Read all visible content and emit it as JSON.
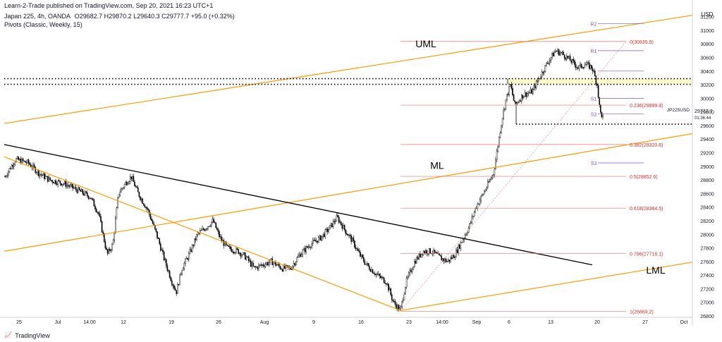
{
  "header": {
    "publisher": "Learn-2-Trade published on TradingView.com, Sep 20, 2021 16:23 UTC+1",
    "symbol": "Japan 225, 4h, OANDA",
    "ohlc": "O29682.7  H29870.2  L29640.3  C29777.7  +95.0 (+0.32%)",
    "indicator": "Pivots (Classic, Weekly, 15)"
  },
  "footer": {
    "brand": "TradingView",
    "icon": "tradingview-logo-icon"
  },
  "colors": {
    "orange": "#ff9800",
    "black": "#000000",
    "fib": "#e57373",
    "pivot": "#7e57c2",
    "zone": "#fff9c4",
    "up": "#ffffff",
    "down": "#000000"
  },
  "chart_data": {
    "type": "candlestick",
    "timeframe": "4h",
    "symbol": "JP225USD",
    "currency": "USD",
    "ylim": [
      26800,
      31300
    ],
    "y_ticks": [
      26800,
      27000,
      27200,
      27400,
      27600,
      27800,
      28000,
      28200,
      28400,
      28600,
      28800,
      29000,
      29200,
      29400,
      29600,
      29800,
      30000,
      30200,
      30400,
      30600,
      30800,
      31000,
      31200
    ],
    "x_ticks": [
      {
        "label": "25",
        "x": 27
      },
      {
        "label": "Jul",
        "x": 82
      },
      {
        "label": "14:00",
        "x": 127
      },
      {
        "label": "12",
        "x": 175
      },
      {
        "label": "19",
        "x": 243
      },
      {
        "label": "26",
        "x": 310
      },
      {
        "label": "Aug",
        "x": 375
      },
      {
        "label": "9",
        "x": 445
      },
      {
        "label": "16",
        "x": 512
      },
      {
        "label": "23",
        "x": 580
      },
      {
        "label": "14:00",
        "x": 627
      },
      {
        "label": "Sep",
        "x": 676
      },
      {
        "label": "6",
        "x": 722
      },
      {
        "label": "13",
        "x": 781
      },
      {
        "label": "20",
        "x": 847
      },
      {
        "label": "27",
        "x": 915
      },
      {
        "label": "Oct",
        "x": 970
      }
    ],
    "path": [
      [
        7,
        28850
      ],
      [
        22,
        29100
      ],
      [
        40,
        29050
      ],
      [
        55,
        28900
      ],
      [
        70,
        28800
      ],
      [
        90,
        28750
      ],
      [
        110,
        28650
      ],
      [
        128,
        28550
      ],
      [
        140,
        28300
      ],
      [
        152,
        27700
      ],
      [
        160,
        27850
      ],
      [
        168,
        28600
      ],
      [
        178,
        28750
      ],
      [
        186,
        28850
      ],
      [
        196,
        28600
      ],
      [
        210,
        28350
      ],
      [
        222,
        28000
      ],
      [
        234,
        27600
      ],
      [
        244,
        27300
      ],
      [
        250,
        27150
      ],
      [
        258,
        27500
      ],
      [
        268,
        27700
      ],
      [
        280,
        28000
      ],
      [
        292,
        28100
      ],
      [
        302,
        28200
      ],
      [
        312,
        27950
      ],
      [
        322,
        27800
      ],
      [
        338,
        27750
      ],
      [
        350,
        27650
      ],
      [
        360,
        27500
      ],
      [
        372,
        27550
      ],
      [
        385,
        27600
      ],
      [
        400,
        27500
      ],
      [
        412,
        27500
      ],
      [
        425,
        27700
      ],
      [
        440,
        27850
      ],
      [
        455,
        27950
      ],
      [
        468,
        28100
      ],
      [
        478,
        28250
      ],
      [
        490,
        28050
      ],
      [
        500,
        27900
      ],
      [
        510,
        27700
      ],
      [
        520,
        27550
      ],
      [
        535,
        27400
      ],
      [
        548,
        27300
      ],
      [
        558,
        27000
      ],
      [
        568,
        26880
      ],
      [
        576,
        27300
      ],
      [
        588,
        27600
      ],
      [
        600,
        27750
      ],
      [
        612,
        27750
      ],
      [
        625,
        27650
      ],
      [
        635,
        27600
      ],
      [
        645,
        27700
      ],
      [
        655,
        27900
      ],
      [
        665,
        28100
      ],
      [
        675,
        28400
      ],
      [
        688,
        28650
      ],
      [
        700,
        28900
      ],
      [
        706,
        29300
      ],
      [
        712,
        29700
      ],
      [
        718,
        30000
      ],
      [
        724,
        30200
      ],
      [
        730,
        29900
      ],
      [
        742,
        30050
      ],
      [
        755,
        30100
      ],
      [
        762,
        30250
      ],
      [
        770,
        30400
      ],
      [
        778,
        30550
      ],
      [
        788,
        30700
      ],
      [
        798,
        30650
      ],
      [
        810,
        30550
      ],
      [
        820,
        30450
      ],
      [
        830,
        30500
      ],
      [
        840,
        30450
      ],
      [
        847,
        30200
      ],
      [
        851,
        29800
      ],
      [
        856,
        29700
      ]
    ],
    "rays": [
      {
        "name": "UML",
        "color": "orange",
        "p1": [
          6,
          29630
        ],
        "p2": [
          982,
          31220
        ]
      },
      {
        "name": "ML",
        "color": "orange",
        "p1": [
          6,
          27750
        ],
        "p2": [
          982,
          29480
        ]
      },
      {
        "name": "LML",
        "color": "orange",
        "p1": [
          568,
          26880
        ],
        "p2": [
          982,
          27590
        ]
      },
      {
        "name": "",
        "color": "orange",
        "p1": [
          6,
          29140
        ],
        "p2": [
          568,
          26880
        ]
      },
      {
        "name": "",
        "color": "black",
        "p1": [
          6,
          29320
        ],
        "p2": [
          840,
          27550
        ]
      }
    ],
    "channel_labels": [
      {
        "text": "UML",
        "x": 604,
        "price": 30750
      },
      {
        "text": "ML",
        "x": 620,
        "price": 28960
      },
      {
        "text": "LML",
        "x": 930,
        "price": 27420
      }
    ],
    "fib_levels": [
      {
        "label": "0(30835.9)",
        "price": 30835.9
      },
      {
        "label": "0.236(29899.8)",
        "price": 29899.8
      },
      {
        "label": "0.382(29320.6)",
        "price": 29320.6
      },
      {
        "label": "0.5(28852.6)",
        "price": 28852.6
      },
      {
        "label": "0.618(28384.5)",
        "price": 28384.5
      },
      {
        "label": "0.786(27718.1)",
        "price": 27718.1
      },
      {
        "label": "1(26869.2)",
        "price": 26869.2
      }
    ],
    "pivots": [
      {
        "label": "R2",
        "price": 31100
      },
      {
        "label": "R1",
        "price": 30700
      },
      {
        "label": "",
        "price": 30400
      },
      {
        "label": "S1",
        "price": 30000
      },
      {
        "label": "S2",
        "price": 29770
      },
      {
        "label": "S3",
        "price": 29050
      }
    ],
    "horizontal_levels": [
      {
        "label": "30288.3",
        "price": 30288.3
      },
      {
        "label": "30205.5",
        "price": 30205.5
      },
      {
        "label": "29619.8",
        "price": 29619.8
      }
    ],
    "current_price": {
      "symbol": "JP225USD",
      "value": "29777.7",
      "countdown": "01:36:44"
    }
  }
}
